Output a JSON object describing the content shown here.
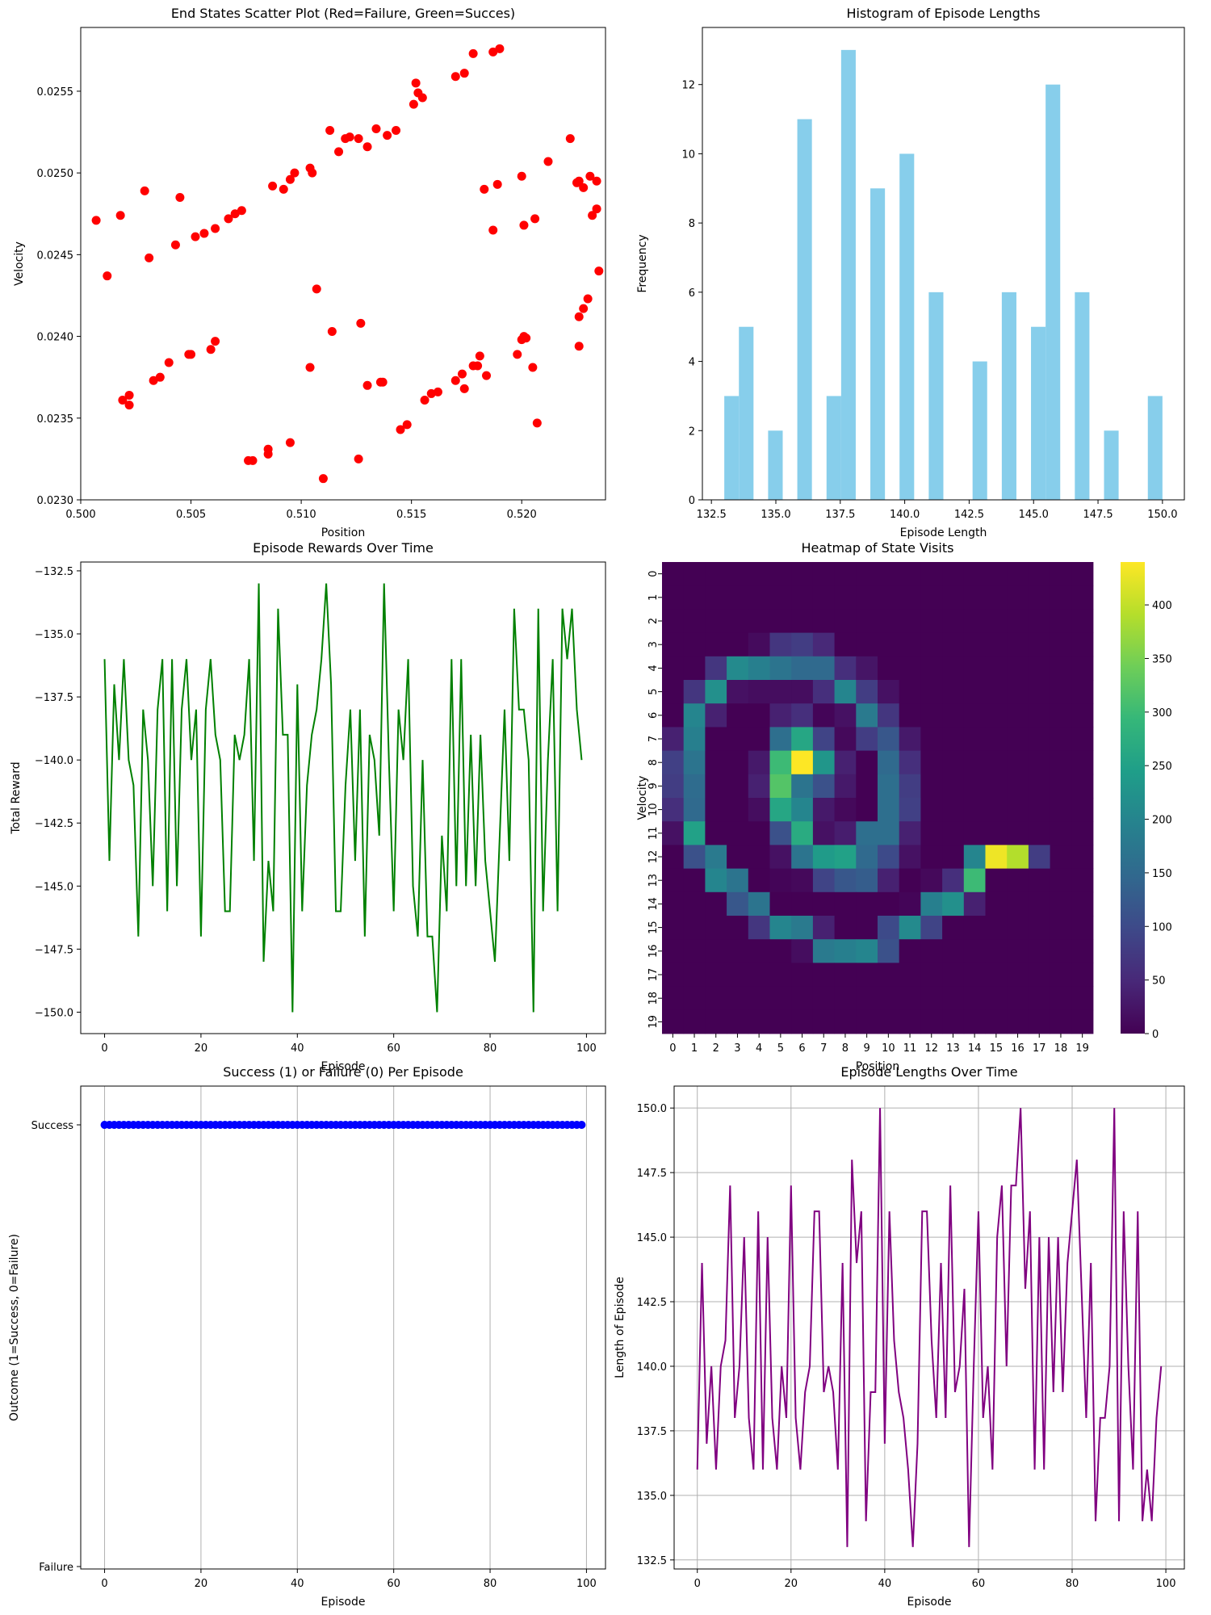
{
  "chart_data": [
    {
      "type": "scatter",
      "title": "End States Scatter Plot (Red=Failure, Green=Succes)",
      "xlabel": "Position",
      "ylabel": "Velocity",
      "xlim": [
        0.5,
        0.5238
      ],
      "ylim": [
        0.023,
        0.02589
      ],
      "xticks": [
        0.5,
        0.505,
        0.51,
        0.515,
        0.52
      ],
      "xticklabels": [
        "0.500",
        "0.505",
        "0.510",
        "0.515",
        "0.520"
      ],
      "yticks": [
        0.023,
        0.0235,
        0.024,
        0.0245,
        0.025,
        0.0255
      ],
      "yticklabels": [
        "0.0230",
        "0.0235",
        "0.0240",
        "0.0245",
        "0.0250",
        "0.0255"
      ],
      "color": "#ff0000",
      "points": [
        [
          0.5007,
          0.02471
        ],
        [
          0.5012,
          0.02437
        ],
        [
          0.5018,
          0.02474
        ],
        [
          0.5029,
          0.02489
        ],
        [
          0.5031,
          0.02448
        ],
        [
          0.5045,
          0.02485
        ],
        [
          0.5043,
          0.02456
        ],
        [
          0.5052,
          0.02461
        ],
        [
          0.5056,
          0.02463
        ],
        [
          0.5061,
          0.02466
        ],
        [
          0.5067,
          0.02472
        ],
        [
          0.507,
          0.02475
        ],
        [
          0.5073,
          0.02477
        ],
        [
          0.5087,
          0.02492
        ],
        [
          0.5092,
          0.0249
        ],
        [
          0.5095,
          0.02496
        ],
        [
          0.5097,
          0.025
        ],
        [
          0.5104,
          0.02503
        ],
        [
          0.5105,
          0.025
        ],
        [
          0.5113,
          0.02526
        ],
        [
          0.5117,
          0.02513
        ],
        [
          0.512,
          0.02521
        ],
        [
          0.5122,
          0.02522
        ],
        [
          0.5126,
          0.02521
        ],
        [
          0.513,
          0.02516
        ],
        [
          0.5134,
          0.02527
        ],
        [
          0.5139,
          0.02523
        ],
        [
          0.5143,
          0.02526
        ],
        [
          0.5151,
          0.02542
        ],
        [
          0.5152,
          0.02555
        ],
        [
          0.5153,
          0.02549
        ],
        [
          0.5155,
          0.02546
        ],
        [
          0.517,
          0.02559
        ],
        [
          0.5174,
          0.02561
        ],
        [
          0.5178,
          0.02573
        ],
        [
          0.5187,
          0.02574
        ],
        [
          0.519,
          0.02576
        ],
        [
          0.5019,
          0.02361
        ],
        [
          0.5022,
          0.02364
        ],
        [
          0.5022,
          0.02358
        ],
        [
          0.5033,
          0.02373
        ],
        [
          0.5036,
          0.02375
        ],
        [
          0.504,
          0.02384
        ],
        [
          0.5049,
          0.02389
        ],
        [
          0.505,
          0.02389
        ],
        [
          0.5059,
          0.02392
        ],
        [
          0.5061,
          0.02397
        ],
        [
          0.5076,
          0.02324
        ],
        [
          0.5078,
          0.02324
        ],
        [
          0.5085,
          0.02328
        ],
        [
          0.5085,
          0.02331
        ],
        [
          0.5095,
          0.02335
        ],
        [
          0.5104,
          0.02381
        ],
        [
          0.5107,
          0.02429
        ],
        [
          0.511,
          0.02313
        ],
        [
          0.5114,
          0.02403
        ],
        [
          0.5126,
          0.02325
        ],
        [
          0.5127,
          0.02408
        ],
        [
          0.513,
          0.0237
        ],
        [
          0.5136,
          0.02372
        ],
        [
          0.5137,
          0.02372
        ],
        [
          0.5145,
          0.02343
        ],
        [
          0.5148,
          0.02346
        ],
        [
          0.5156,
          0.02361
        ],
        [
          0.5159,
          0.02365
        ],
        [
          0.5162,
          0.02366
        ],
        [
          0.517,
          0.02373
        ],
        [
          0.5173,
          0.02377
        ],
        [
          0.5174,
          0.02368
        ],
        [
          0.5178,
          0.02382
        ],
        [
          0.518,
          0.02382
        ],
        [
          0.5181,
          0.02388
        ],
        [
          0.5184,
          0.02376
        ],
        [
          0.5183,
          0.0249
        ],
        [
          0.5187,
          0.02465
        ],
        [
          0.5189,
          0.02493
        ],
        [
          0.5198,
          0.02389
        ],
        [
          0.52,
          0.02398
        ],
        [
          0.5201,
          0.024
        ],
        [
          0.5202,
          0.02399
        ],
        [
          0.5201,
          0.02468
        ],
        [
          0.52,
          0.02498
        ],
        [
          0.5205,
          0.02381
        ],
        [
          0.5206,
          0.02472
        ],
        [
          0.5207,
          0.02347
        ],
        [
          0.5212,
          0.02507
        ],
        [
          0.5222,
          0.02521
        ],
        [
          0.5225,
          0.02494
        ],
        [
          0.5226,
          0.02495
        ],
        [
          0.5228,
          0.02491
        ],
        [
          0.5226,
          0.02412
        ],
        [
          0.5226,
          0.02394
        ],
        [
          0.5228,
          0.02417
        ],
        [
          0.523,
          0.02423
        ],
        [
          0.5231,
          0.02498
        ],
        [
          0.5232,
          0.02474
        ],
        [
          0.5234,
          0.02495
        ],
        [
          0.5234,
          0.02478
        ],
        [
          0.5235,
          0.0244
        ]
      ]
    },
    {
      "type": "bar",
      "title": "Histogram of Episode Lengths",
      "xlabel": "Episode Length",
      "ylabel": "Frequency",
      "xlim": [
        132.15,
        150.85
      ],
      "ylim": [
        0,
        13.65
      ],
      "xticks": [
        132.5,
        135.0,
        137.5,
        140.0,
        142.5,
        145.0,
        147.5,
        150.0
      ],
      "xticklabels": [
        "132.5",
        "135.0",
        "137.5",
        "140.0",
        "142.5",
        "145.0",
        "147.5",
        "150.0"
      ],
      "yticks": [
        0,
        2,
        4,
        6,
        8,
        10,
        12
      ],
      "color": "#87ceeb",
      "bin_width": 0.5667,
      "bin_starts": [
        133.0,
        133.567,
        134.7,
        135.833,
        136.967,
        137.533,
        138.667,
        139.8,
        140.933,
        142.633,
        143.767,
        144.9,
        145.467,
        146.6,
        147.733,
        149.433
      ],
      "values": [
        3,
        5,
        2,
        11,
        3,
        13,
        9,
        10,
        6,
        4,
        6,
        5,
        12,
        6,
        2,
        3
      ]
    },
    {
      "type": "line",
      "title": "Episode Rewards Over Time",
      "xlabel": "Episode",
      "ylabel": "Total Reward",
      "xlim": [
        -4.95,
        103.95
      ],
      "ylim": [
        -150.85,
        -132.15
      ],
      "xticks": [
        0,
        20,
        40,
        60,
        80,
        100
      ],
      "yticks": [
        -150.0,
        -147.5,
        -145.0,
        -142.5,
        -140.0,
        -137.5,
        -135.0,
        -132.5
      ],
      "yticklabels": [
        "−150.0",
        "−147.5",
        "−145.0",
        "−142.5",
        "−140.0",
        "−137.5",
        "−135.0",
        "−132.5"
      ],
      "color": "#008000",
      "values": [
        -136,
        -144,
        -137,
        -140,
        -136,
        -140,
        -141,
        -147,
        -138,
        -140,
        -145,
        -138,
        -136,
        -146,
        -136,
        -145,
        -138,
        -136,
        -140,
        -138,
        -147,
        -138,
        -136,
        -139,
        -140,
        -146,
        -146,
        -139,
        -140,
        -139,
        -136,
        -144,
        -133,
        -148,
        -144,
        -146,
        -134,
        -139,
        -139,
        -150,
        -137,
        -146,
        -141,
        -139,
        -138,
        -136,
        -133,
        -137,
        -146,
        -146,
        -141,
        -138,
        -144,
        -138,
        -147,
        -139,
        -140,
        -143,
        -133,
        -140,
        -146,
        -138,
        -140,
        -136,
        -145,
        -147,
        -140,
        -147,
        -147,
        -150,
        -143,
        -146,
        -136,
        -145,
        -136,
        -145,
        -139,
        -145,
        -139,
        -144,
        -146,
        -148,
        -143,
        -138,
        -144,
        -134,
        -138,
        -138,
        -140,
        -150,
        -134,
        -146,
        -140,
        -136,
        -146,
        -134,
        -136,
        -134,
        -138,
        -140
      ]
    },
    {
      "type": "heatmap",
      "title": "Heatmap of State Visits",
      "xlabel": "Position",
      "ylabel": "Velocity",
      "x_categories": [
        "0",
        "1",
        "2",
        "3",
        "4",
        "5",
        "6",
        "7",
        "8",
        "9",
        "10",
        "11",
        "12",
        "13",
        "14",
        "15",
        "16",
        "17",
        "18",
        "19"
      ],
      "y_categories": [
        "0",
        "1",
        "2",
        "3",
        "4",
        "5",
        "6",
        "7",
        "8",
        "9",
        "10",
        "11",
        "12",
        "13",
        "14",
        "15",
        "16",
        "17",
        "18",
        "19"
      ],
      "colorbar_ticks": [
        0,
        50,
        100,
        150,
        200,
        250,
        300,
        350,
        400
      ],
      "vmin": 0,
      "vmax": 440,
      "colormap": "viridis",
      "values": [
        [
          0,
          0,
          0,
          0,
          0,
          0,
          0,
          0,
          0,
          0,
          0,
          0,
          0,
          0,
          0,
          0,
          0,
          0,
          0,
          0
        ],
        [
          0,
          0,
          0,
          0,
          0,
          0,
          0,
          0,
          0,
          0,
          0,
          0,
          0,
          0,
          0,
          0,
          0,
          0,
          0,
          0
        ],
        [
          0,
          0,
          0,
          0,
          0,
          0,
          0,
          0,
          0,
          0,
          0,
          0,
          0,
          0,
          0,
          0,
          0,
          0,
          0,
          0
        ],
        [
          0,
          0,
          0,
          0,
          12,
          70,
          80,
          50,
          0,
          0,
          0,
          0,
          0,
          0,
          0,
          0,
          0,
          0,
          0,
          0
        ],
        [
          0,
          0,
          70,
          210,
          190,
          170,
          150,
          150,
          60,
          25,
          0,
          0,
          0,
          0,
          0,
          0,
          0,
          0,
          0,
          0
        ],
        [
          0,
          70,
          220,
          20,
          15,
          15,
          15,
          60,
          200,
          80,
          20,
          0,
          0,
          0,
          0,
          0,
          0,
          0,
          0,
          0
        ],
        [
          0,
          200,
          40,
          0,
          0,
          40,
          60,
          5,
          20,
          180,
          70,
          0,
          0,
          0,
          0,
          0,
          0,
          0,
          0,
          0
        ],
        [
          40,
          190,
          0,
          0,
          0,
          160,
          260,
          90,
          10,
          80,
          120,
          30,
          0,
          0,
          0,
          0,
          0,
          0,
          0,
          0
        ],
        [
          85,
          170,
          0,
          0,
          30,
          300,
          440,
          230,
          40,
          0,
          150,
          60,
          0,
          0,
          0,
          0,
          0,
          0,
          0,
          0
        ],
        [
          80,
          155,
          0,
          0,
          40,
          320,
          170,
          110,
          30,
          0,
          160,
          80,
          0,
          0,
          0,
          0,
          0,
          0,
          0,
          0
        ],
        [
          60,
          150,
          0,
          0,
          15,
          260,
          200,
          30,
          10,
          0,
          160,
          85,
          0,
          0,
          0,
          0,
          0,
          0,
          0,
          0
        ],
        [
          20,
          250,
          0,
          0,
          0,
          110,
          270,
          20,
          35,
          160,
          160,
          40,
          0,
          0,
          0,
          0,
          0,
          0,
          0,
          0
        ],
        [
          0,
          110,
          180,
          0,
          0,
          20,
          170,
          240,
          250,
          150,
          100,
          20,
          0,
          0,
          200,
          430,
          390,
          80,
          0,
          0
        ],
        [
          0,
          0,
          200,
          170,
          0,
          5,
          10,
          90,
          120,
          130,
          40,
          0,
          10,
          60,
          300,
          0,
          0,
          0,
          0,
          0
        ],
        [
          0,
          0,
          0,
          120,
          170,
          0,
          0,
          0,
          0,
          0,
          0,
          5,
          190,
          220,
          40,
          0,
          0,
          0,
          0,
          0
        ],
        [
          0,
          0,
          0,
          0,
          70,
          200,
          180,
          40,
          0,
          0,
          100,
          210,
          90,
          0,
          0,
          0,
          0,
          0,
          0,
          0
        ],
        [
          0,
          0,
          0,
          0,
          0,
          0,
          15,
          180,
          190,
          200,
          110,
          0,
          0,
          0,
          0,
          0,
          0,
          0,
          0,
          0
        ],
        [
          0,
          0,
          0,
          0,
          0,
          0,
          0,
          0,
          0,
          0,
          0,
          0,
          0,
          0,
          0,
          0,
          0,
          0,
          0,
          0
        ],
        [
          0,
          0,
          0,
          0,
          0,
          0,
          0,
          0,
          0,
          0,
          0,
          0,
          0,
          0,
          0,
          0,
          0,
          0,
          0,
          0
        ],
        [
          0,
          0,
          0,
          0,
          0,
          0,
          0,
          0,
          0,
          0,
          0,
          0,
          0,
          0,
          0,
          0,
          0,
          0,
          0,
          0
        ]
      ]
    },
    {
      "type": "scatter",
      "title": "Success (1) or Failure (0) Per Episode",
      "xlabel": "Episode",
      "ylabel": "Outcome (1=Success, 0=Failure)",
      "xlim": [
        -4.95,
        103.95
      ],
      "ylim": [
        0,
        1
      ],
      "xticks": [
        0,
        20,
        40,
        60,
        80,
        100
      ],
      "yticks": [
        0,
        1
      ],
      "yticklabels": [
        "Failure",
        "Success"
      ],
      "grid": true,
      "color": "#0000ff",
      "episodes": 100,
      "value": 1
    },
    {
      "type": "line",
      "title": "Episode Lengths Over Time",
      "xlabel": "Episode",
      "ylabel": "Length of Episode",
      "xlim": [
        -4.95,
        103.95
      ],
      "ylim": [
        132.15,
        150.85
      ],
      "xticks": [
        0,
        20,
        40,
        60,
        80,
        100
      ],
      "yticks": [
        132.5,
        135.0,
        137.5,
        140.0,
        142.5,
        145.0,
        147.5,
        150.0
      ],
      "yticklabels": [
        "132.5",
        "135.0",
        "137.5",
        "140.0",
        "142.5",
        "145.0",
        "147.5",
        "150.0"
      ],
      "grid": true,
      "color": "#800080",
      "values": [
        136,
        144,
        137,
        140,
        136,
        140,
        141,
        147,
        138,
        140,
        145,
        138,
        136,
        146,
        136,
        145,
        138,
        136,
        140,
        138,
        147,
        138,
        136,
        139,
        140,
        146,
        146,
        139,
        140,
        139,
        136,
        144,
        133,
        148,
        144,
        146,
        134,
        139,
        139,
        150,
        137,
        146,
        141,
        139,
        138,
        136,
        133,
        137,
        146,
        146,
        141,
        138,
        144,
        138,
        147,
        139,
        140,
        143,
        133,
        140,
        146,
        138,
        140,
        136,
        145,
        147,
        140,
        147,
        147,
        150,
        143,
        146,
        136,
        145,
        136,
        145,
        139,
        145,
        139,
        144,
        146,
        148,
        143,
        138,
        144,
        134,
        138,
        138,
        140,
        150,
        134,
        146,
        140,
        136,
        146,
        134,
        136,
        134,
        138,
        140
      ]
    }
  ]
}
